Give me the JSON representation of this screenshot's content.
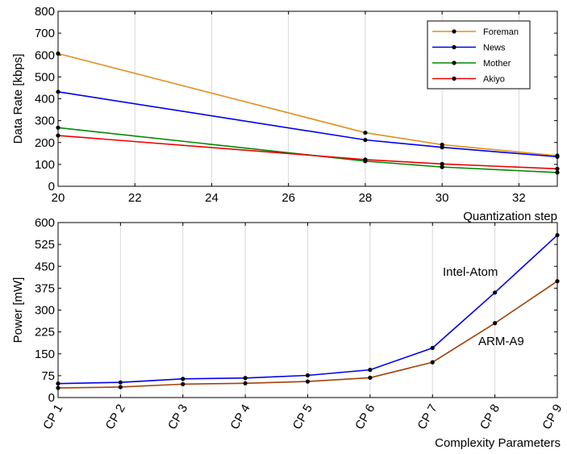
{
  "chart_data": [
    {
      "type": "line",
      "title": "",
      "xlabel": "Quantization step",
      "ylabel": "Data Rate [kbps]",
      "xlim": [
        20,
        33
      ],
      "ylim": [
        0,
        800
      ],
      "xticks": [
        20,
        22,
        24,
        26,
        28,
        30,
        32
      ],
      "yticks": [
        0,
        100,
        200,
        300,
        400,
        500,
        600,
        700,
        800
      ],
      "grid": "vertical",
      "legend_position": "top-right",
      "series": [
        {
          "name": "Foreman",
          "color": "#E0901C",
          "x": [
            20,
            28,
            30,
            33
          ],
          "y": [
            607,
            245,
            190,
            140
          ]
        },
        {
          "name": "News",
          "color": "#0000EE",
          "x": [
            20,
            28,
            30,
            33
          ],
          "y": [
            432,
            212,
            178,
            135
          ]
        },
        {
          "name": "Mother",
          "color": "#008800",
          "x": [
            20,
            28,
            30,
            33
          ],
          "y": [
            268,
            115,
            88,
            63
          ]
        },
        {
          "name": "Akiyo",
          "color": "#EE0000",
          "x": [
            20,
            28,
            30,
            33
          ],
          "y": [
            232,
            122,
            102,
            80
          ]
        }
      ]
    },
    {
      "type": "line",
      "title": "",
      "xlabel": "Complexity Parameters",
      "ylabel": "Power [mW]",
      "categories": [
        "CP 1",
        "CP 2",
        "CP 3",
        "CP 4",
        "CP 5",
        "CP 6",
        "CP 7",
        "CP 8",
        "CP 9"
      ],
      "ylim": [
        0,
        600
      ],
      "yticks": [
        0,
        75,
        150,
        225,
        300,
        375,
        450,
        525,
        600
      ],
      "grid": "vertical",
      "annotations": [
        "Intel-Atom",
        "ARM-A9"
      ],
      "series": [
        {
          "name": "Intel-Atom",
          "color": "#0000EE",
          "values": [
            48,
            52,
            64,
            67,
            76,
            95,
            170,
            360,
            557
          ]
        },
        {
          "name": "ARM-A9",
          "color": "#A0420A",
          "values": [
            33,
            36,
            46,
            49,
            55,
            68,
            121,
            255,
            399
          ]
        }
      ]
    }
  ]
}
